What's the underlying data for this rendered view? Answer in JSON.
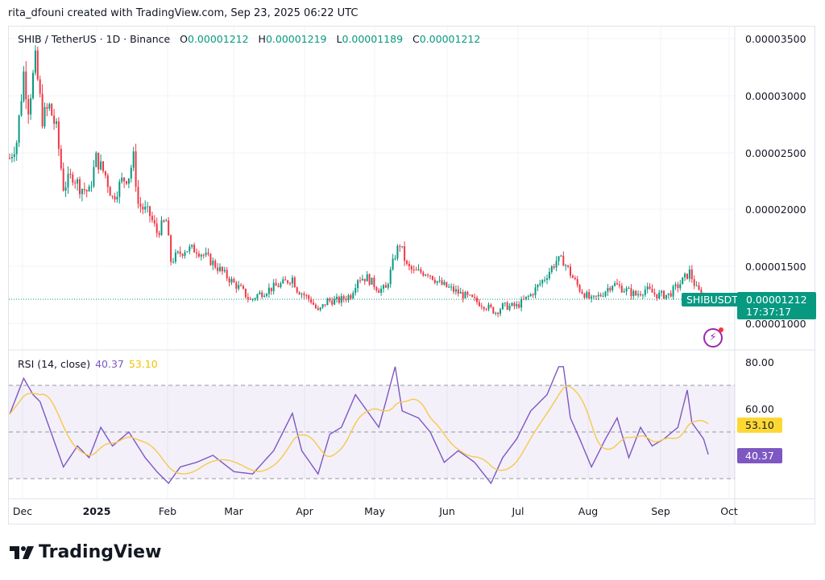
{
  "caption": "rita_dfouni created with TradingView.com, Sep 23, 2025 06:22 UTC",
  "legend": {
    "symbol": "SHIB / TetherUS · 1D · Binance",
    "o_label": "O",
    "o": "0.00001212",
    "h_label": "H",
    "h": "0.00001219",
    "l_label": "L",
    "l": "0.00001189",
    "c_label": "C",
    "c": "0.00001212"
  },
  "price_axis": [
    "0.00003500",
    "0.00003000",
    "0.00002500",
    "0.00002000",
    "0.00001500",
    "0.00001000"
  ],
  "last_price": {
    "symbol": "SHIBUSDT",
    "price": "0.00001212",
    "countdown": "17:37:17"
  },
  "rsi": {
    "label": "RSI (14, close)",
    "value": "40.37",
    "ma": "53.10",
    "axis": [
      "80.00",
      "60.00"
    ]
  },
  "time_axis": [
    "Dec",
    "2025",
    "Feb",
    "Mar",
    "Apr",
    "May",
    "Jun",
    "Jul",
    "Aug",
    "Sep",
    "Oct"
  ],
  "logo": "TradingView",
  "colors": {
    "up": "#089981",
    "down": "#f23645",
    "rsi": "#7e57c2",
    "rsi_ma": "#f7c94b"
  },
  "chart_data": {
    "type": "candlestick",
    "title": "SHIB / TetherUS · 1D · Binance",
    "x_unit": "days since 2024-11-25",
    "price_keypoints_e6": [
      [
        0,
        24.5
      ],
      [
        3,
        26
      ],
      [
        6,
        32
      ],
      [
        8,
        29
      ],
      [
        11,
        33
      ],
      [
        14,
        28
      ],
      [
        17,
        29
      ],
      [
        20,
        27
      ],
      [
        23,
        22
      ],
      [
        27,
        23
      ],
      [
        30,
        22
      ],
      [
        34,
        21.5
      ],
      [
        37,
        24.5
      ],
      [
        41,
        23
      ],
      [
        44,
        21
      ],
      [
        48,
        22.5
      ],
      [
        51,
        23
      ],
      [
        53,
        24.5
      ],
      [
        55,
        20.5
      ],
      [
        60,
        19.5
      ],
      [
        63,
        18
      ],
      [
        67,
        19
      ],
      [
        69,
        15.5
      ],
      [
        72,
        16
      ],
      [
        75,
        16.5
      ],
      [
        80,
        16.5
      ],
      [
        86,
        15.5
      ],
      [
        91,
        14.5
      ],
      [
        96,
        13.5
      ],
      [
        99,
        13
      ],
      [
        103,
        12
      ],
      [
        106,
        12.5
      ],
      [
        111,
        13
      ],
      [
        117,
        13.5
      ],
      [
        121,
        14
      ],
      [
        123,
        13
      ],
      [
        129,
        12
      ],
      [
        132,
        11
      ],
      [
        136,
        12
      ],
      [
        141,
        12
      ],
      [
        146,
        12.5
      ],
      [
        149,
        14
      ],
      [
        153,
        14
      ],
      [
        158,
        13
      ],
      [
        161,
        13
      ],
      [
        165,
        16
      ],
      [
        167,
        17
      ],
      [
        170,
        15
      ],
      [
        173,
        14.5
      ],
      [
        179,
        14.5
      ],
      [
        184,
        13.5
      ],
      [
        189,
        13
      ],
      [
        194,
        12.5
      ],
      [
        199,
        12
      ],
      [
        204,
        11.5
      ],
      [
        208,
        11
      ],
      [
        211,
        11.5
      ],
      [
        217,
        11.5
      ],
      [
        223,
        12.5
      ],
      [
        229,
        14
      ],
      [
        234,
        15.5
      ],
      [
        237,
        15.5
      ],
      [
        241,
        14
      ],
      [
        244,
        13
      ],
      [
        249,
        12
      ],
      [
        253,
        12.5
      ],
      [
        258,
        13.5
      ],
      [
        263,
        13
      ],
      [
        268,
        12.5
      ],
      [
        272,
        13
      ],
      [
        277,
        12.5
      ],
      [
        282,
        12.5
      ],
      [
        287,
        13.5
      ],
      [
        291,
        14.5
      ],
      [
        294,
        13
      ],
      [
        298,
        12.12
      ]
    ],
    "price_ylim_e6": [
      8,
      36
    ],
    "rsi_keypoints": [
      [
        0,
        57.6
      ],
      [
        6,
        73
      ],
      [
        10,
        66
      ],
      [
        13,
        63
      ],
      [
        18,
        49
      ],
      [
        23,
        35
      ],
      [
        29,
        44
      ],
      [
        34,
        39
      ],
      [
        39,
        52
      ],
      [
        44,
        44
      ],
      [
        51,
        50
      ],
      [
        58,
        39
      ],
      [
        63,
        33
      ],
      [
        68,
        28
      ],
      [
        73,
        35
      ],
      [
        80,
        37
      ],
      [
        87,
        40
      ],
      [
        96,
        33
      ],
      [
        104,
        32
      ],
      [
        113,
        42
      ],
      [
        121,
        58
      ],
      [
        125,
        42
      ],
      [
        132,
        32
      ],
      [
        137,
        49
      ],
      [
        142,
        52
      ],
      [
        148,
        66
      ],
      [
        153,
        59
      ],
      [
        158,
        52
      ],
      [
        161,
        63
      ],
      [
        165,
        78
      ],
      [
        168,
        59
      ],
      [
        175,
        56
      ],
      [
        180,
        50
      ],
      [
        186,
        37
      ],
      [
        192,
        42
      ],
      [
        199,
        37
      ],
      [
        206,
        28
      ],
      [
        211,
        39
      ],
      [
        217,
        47
      ],
      [
        223,
        59
      ],
      [
        230,
        66
      ],
      [
        235,
        78
      ],
      [
        237,
        78
      ],
      [
        240,
        56
      ],
      [
        244,
        47
      ],
      [
        249,
        35
      ],
      [
        255,
        47
      ],
      [
        260,
        56
      ],
      [
        265,
        39
      ],
      [
        270,
        52
      ],
      [
        275,
        44
      ],
      [
        280,
        47
      ],
      [
        286,
        52
      ],
      [
        290,
        68
      ],
      [
        292,
        54
      ],
      [
        297,
        47
      ],
      [
        299,
        40.37
      ]
    ],
    "rsi_bands": [
      30,
      50,
      70
    ],
    "rsi_ylim": [
      20,
      85
    ]
  }
}
